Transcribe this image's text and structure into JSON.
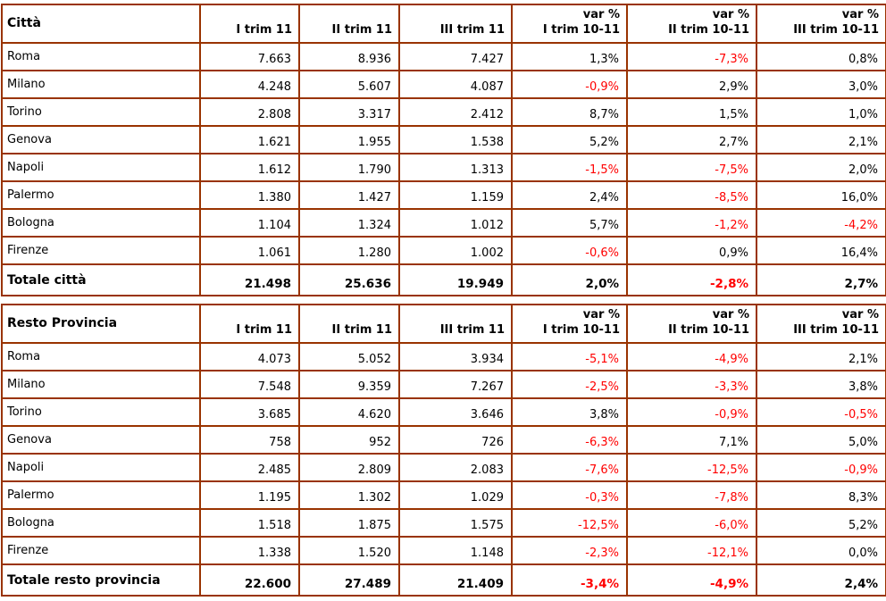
{
  "colors": {
    "table_border": "#993300",
    "negative_value_text": "#ff0000",
    "positive_value_text": "#000000",
    "background": "#ffffff"
  },
  "chart_data": [
    {
      "type": "table",
      "title": "Città",
      "columns": [
        {
          "top": "",
          "bottom": "I trim 11"
        },
        {
          "top": "",
          "bottom": "II trim 11"
        },
        {
          "top": "",
          "bottom": "III trim 11"
        },
        {
          "top": "var %",
          "bottom": "I trim 10-11"
        },
        {
          "top": "var %",
          "bottom": "II trim 10-11"
        },
        {
          "top": "var %",
          "bottom": "III trim 10-11"
        }
      ],
      "rows": [
        {
          "label": "Roma",
          "values": [
            "7.663",
            "8.936",
            "7.427",
            "1,3%",
            "-7,3%",
            "0,8%"
          ]
        },
        {
          "label": "Milano",
          "values": [
            "4.248",
            "5.607",
            "4.087",
            "-0,9%",
            "2,9%",
            "3,0%"
          ]
        },
        {
          "label": "Torino",
          "values": [
            "2.808",
            "3.317",
            "2.412",
            "8,7%",
            "1,5%",
            "1,0%"
          ]
        },
        {
          "label": "Genova",
          "values": [
            "1.621",
            "1.955",
            "1.538",
            "5,2%",
            "2,7%",
            "2,1%"
          ]
        },
        {
          "label": "Napoli",
          "values": [
            "1.612",
            "1.790",
            "1.313",
            "-1,5%",
            "-7,5%",
            "2,0%"
          ]
        },
        {
          "label": "Palermo",
          "values": [
            "1.380",
            "1.427",
            "1.159",
            "2,4%",
            "-8,5%",
            "16,0%"
          ]
        },
        {
          "label": "Bologna",
          "values": [
            "1.104",
            "1.324",
            "1.012",
            "5,7%",
            "-1,2%",
            "-4,2%"
          ]
        },
        {
          "label": "Firenze",
          "values": [
            "1.061",
            "1.280",
            "1.002",
            "-0,6%",
            "0,9%",
            "16,4%"
          ]
        }
      ],
      "total": {
        "label": "Totale città",
        "values": [
          "21.498",
          "25.636",
          "19.949",
          "2,0%",
          "-2,8%",
          "2,7%"
        ]
      }
    },
    {
      "type": "table",
      "title": "Resto Provincia",
      "columns": [
        {
          "top": "",
          "bottom": "I trim 11"
        },
        {
          "top": "",
          "bottom": "II trim 11"
        },
        {
          "top": "",
          "bottom": "III trim 11"
        },
        {
          "top": "var %",
          "bottom": "I trim 10-11"
        },
        {
          "top": "var %",
          "bottom": "II trim 10-11"
        },
        {
          "top": "var %",
          "bottom": "III trim 10-11"
        }
      ],
      "rows": [
        {
          "label": "Roma",
          "values": [
            "4.073",
            "5.052",
            "3.934",
            "-5,1%",
            "-4,9%",
            "2,1%"
          ]
        },
        {
          "label": "Milano",
          "values": [
            "7.548",
            "9.359",
            "7.267",
            "-2,5%",
            "-3,3%",
            "3,8%"
          ]
        },
        {
          "label": "Torino",
          "values": [
            "3.685",
            "4.620",
            "3.646",
            "3,8%",
            "-0,9%",
            "-0,5%"
          ]
        },
        {
          "label": "Genova",
          "values": [
            "758",
            "952",
            "726",
            "-6,3%",
            "7,1%",
            "5,0%"
          ]
        },
        {
          "label": "Napoli",
          "values": [
            "2.485",
            "2.809",
            "2.083",
            "-7,6%",
            "-12,5%",
            "-0,9%"
          ]
        },
        {
          "label": "Palermo",
          "values": [
            "1.195",
            "1.302",
            "1.029",
            "-0,3%",
            "-7,8%",
            "8,3%"
          ]
        },
        {
          "label": "Bologna",
          "values": [
            "1.518",
            "1.875",
            "1.575",
            "-12,5%",
            "-6,0%",
            "5,2%"
          ]
        },
        {
          "label": "Firenze",
          "values": [
            "1.338",
            "1.520",
            "1.148",
            "-2,3%",
            "-12,1%",
            "0,0%"
          ]
        }
      ],
      "total": {
        "label": "Totale resto provincia",
        "values": [
          "22.600",
          "27.489",
          "21.409",
          "-3,4%",
          "-4,9%",
          "2,4%"
        ]
      }
    }
  ]
}
